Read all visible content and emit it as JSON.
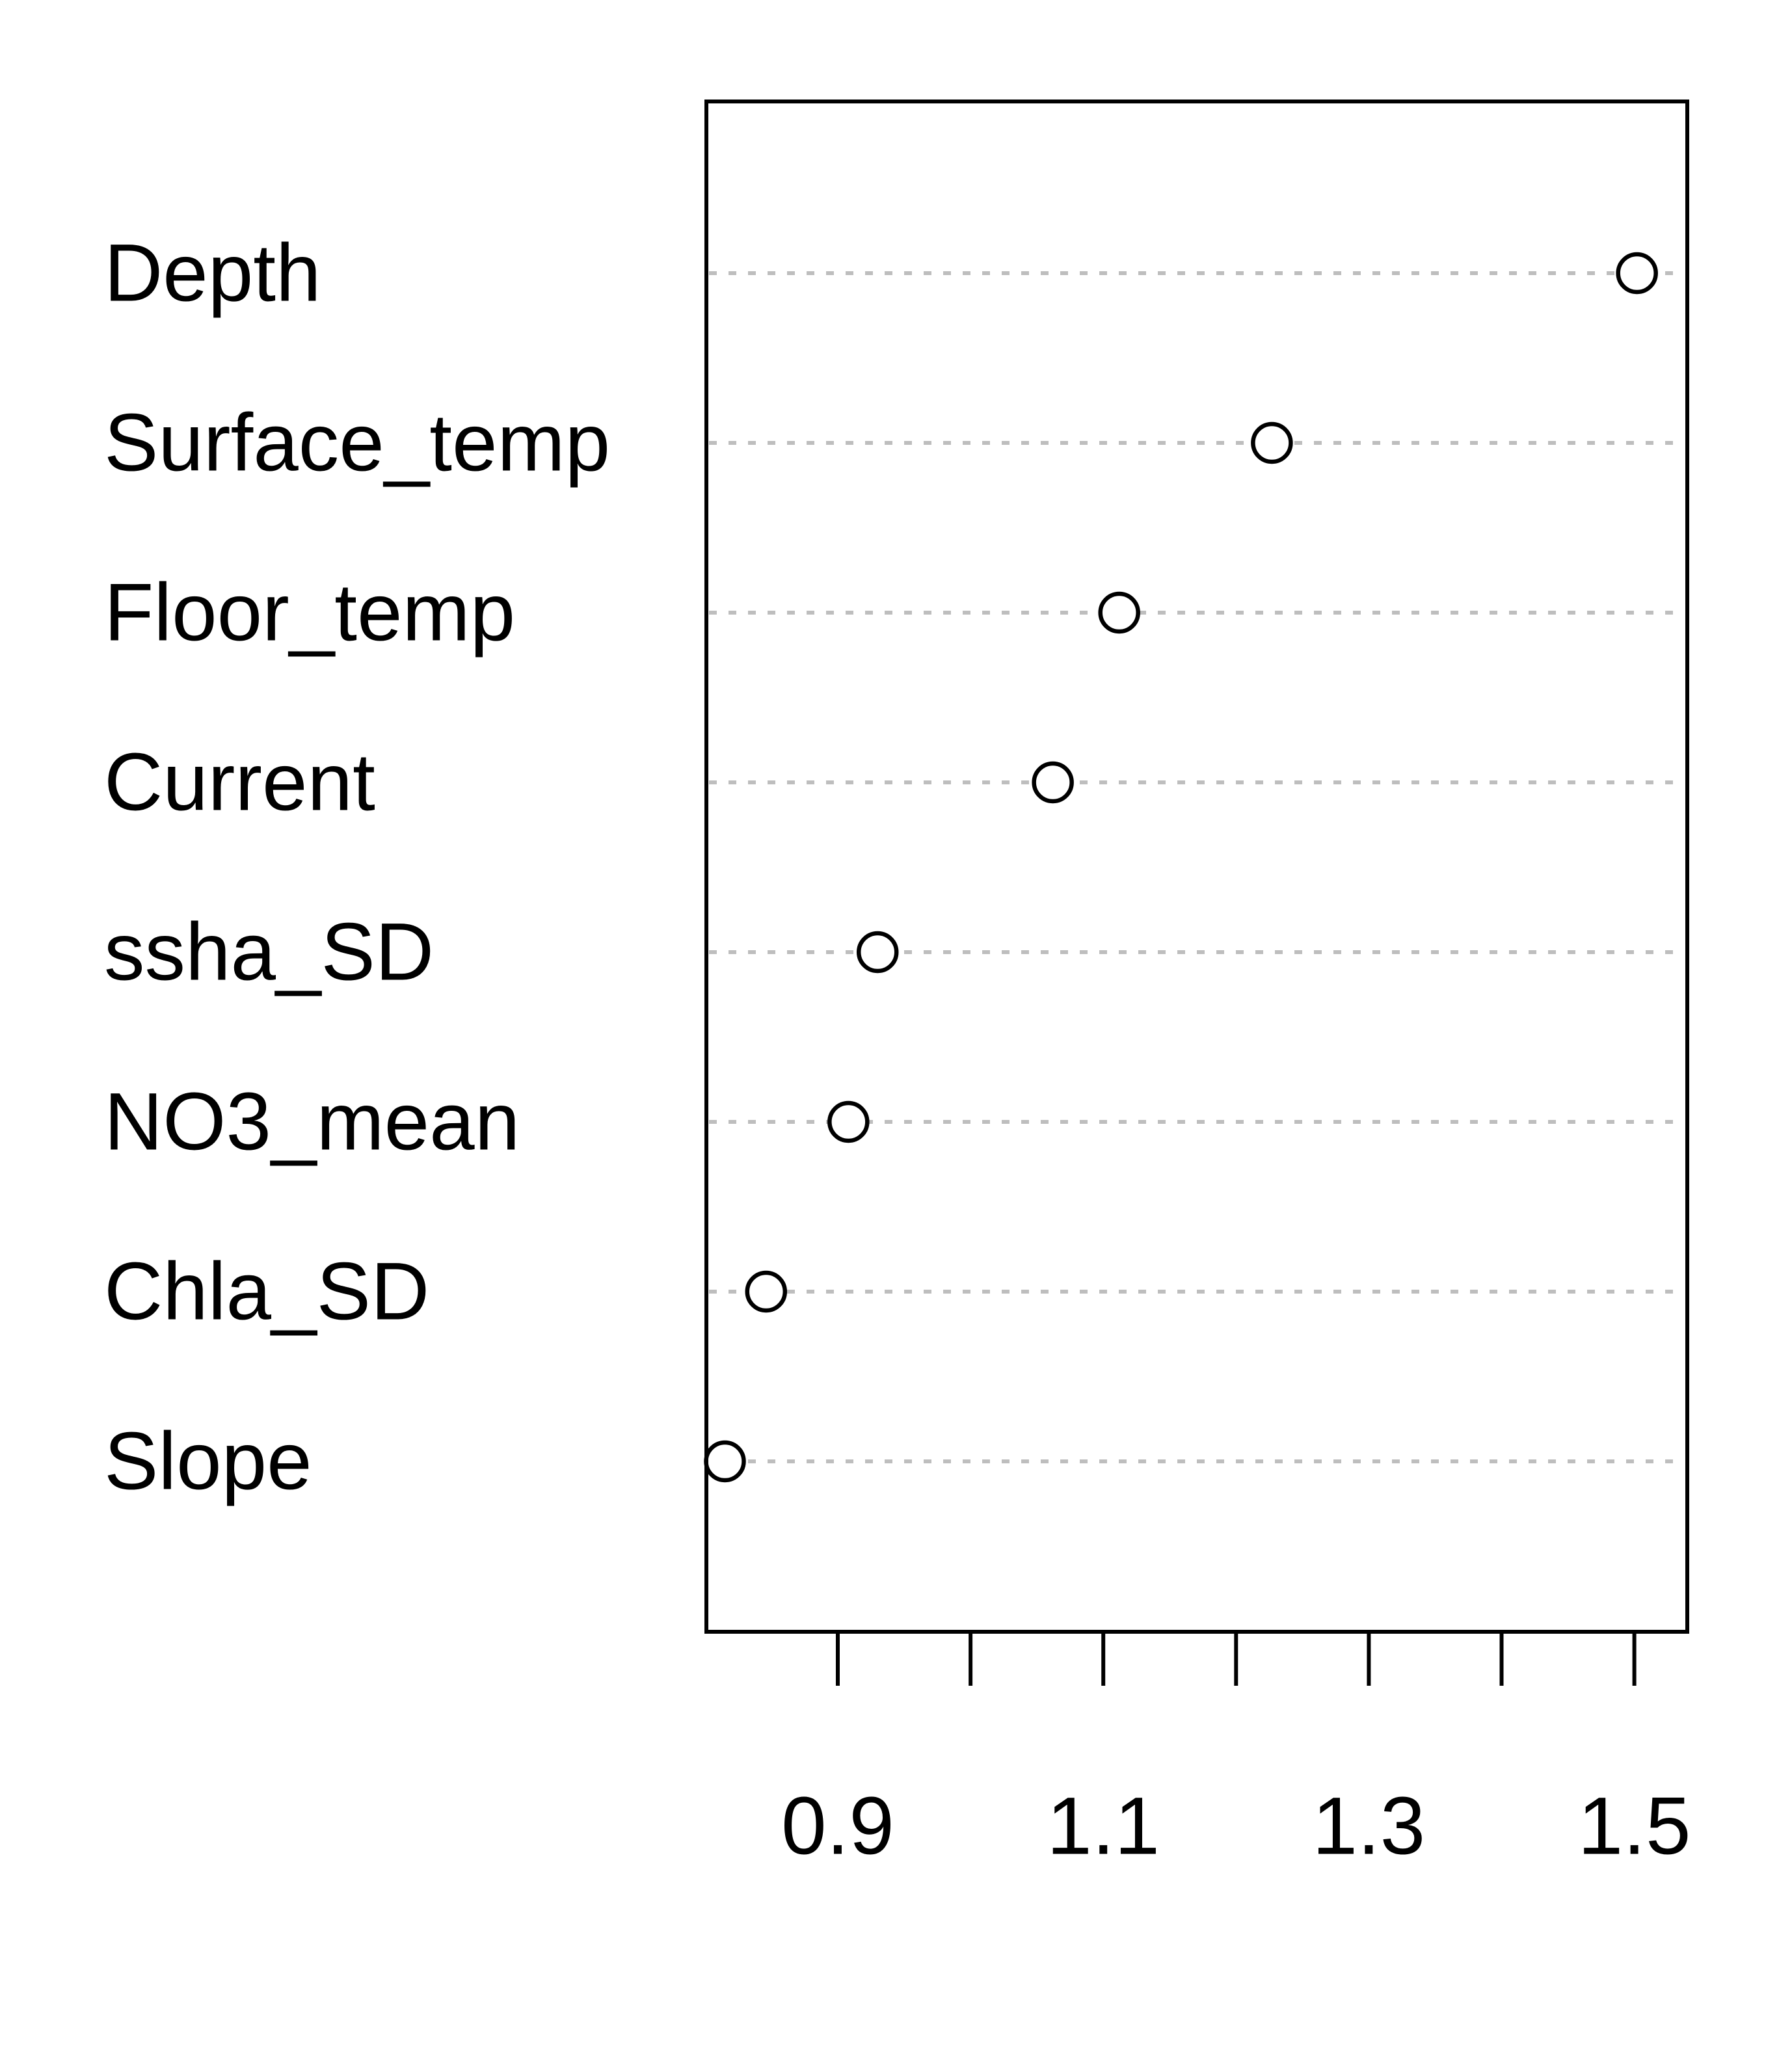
{
  "chart_data": {
    "type": "scatter",
    "categories": [
      "Depth",
      "Surface_temp",
      "Floor_temp",
      "Current",
      "ssha_SD",
      "NO3_mean",
      "Chla_SD",
      "Slope"
    ],
    "values": [
      1.502,
      1.227,
      1.112,
      1.062,
      0.93,
      0.908,
      0.846,
      0.815
    ],
    "x_ticks": [
      0.9,
      1.0,
      1.1,
      1.2,
      1.3,
      1.4,
      1.5
    ],
    "x_tick_labels": [
      "0.9",
      "1.1",
      "1.3",
      "1.5"
    ],
    "xlim": [
      0.8,
      1.54
    ],
    "title": "",
    "xlabel": "",
    "ylabel": "",
    "grid": "dotted horizontal guide lines",
    "point_style": "open-circle",
    "colors": {
      "point": "#000000",
      "guide": "#bebebe",
      "frame": "#000000"
    }
  }
}
